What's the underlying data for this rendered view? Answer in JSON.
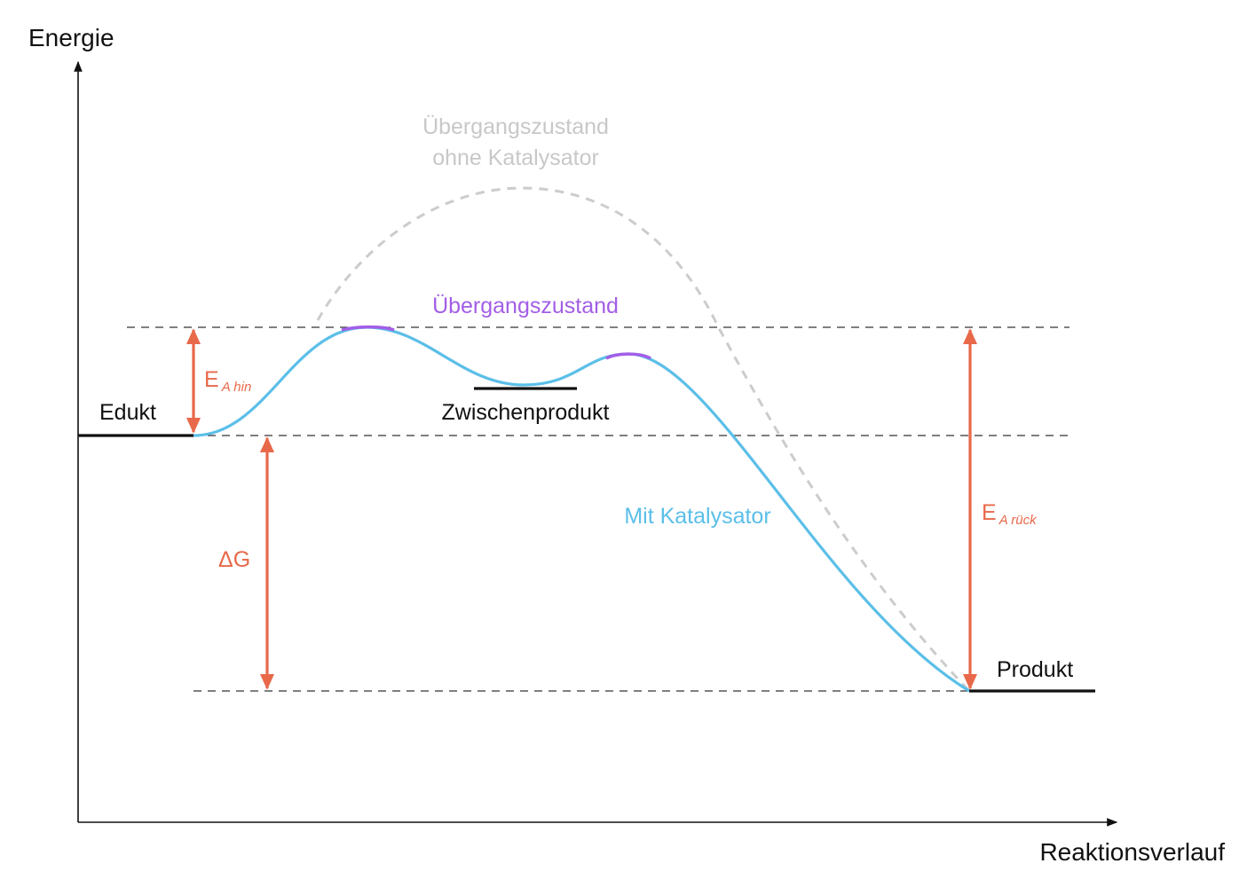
{
  "axes": {
    "y_label": "Energie",
    "x_label": "Reaktionsverlauf"
  },
  "labels": {
    "edukt": "Edukt",
    "produkt": "Produkt",
    "zwischenprodukt": "Zwischenprodukt",
    "uebergangszustand": "Übergangszustand",
    "uebergang_ohne_line1": "Übergangszustand",
    "uebergang_ohne_line2": "ohne Katalysator",
    "mit_katalysator": "Mit Katalysator",
    "ea_hin_main": "E",
    "ea_hin_sub": "A hin",
    "ea_rueck_main": "E",
    "ea_rueck_sub": "A rück",
    "delta_g": "ΔG"
  },
  "colors": {
    "axis": "#111111",
    "level_line": "#111111",
    "guide_dash": "#333333",
    "catalyzed_curve": "#5bbfe8",
    "uncatalyzed_curve": "#cccccc",
    "transition_highlight": "#a35ee6",
    "energy_arrow": "#e8694a",
    "uncatalyzed_text": "#c8c8c8",
    "catalyzed_text": "#5bbfe8",
    "transition_text": "#a35ee6"
  }
}
